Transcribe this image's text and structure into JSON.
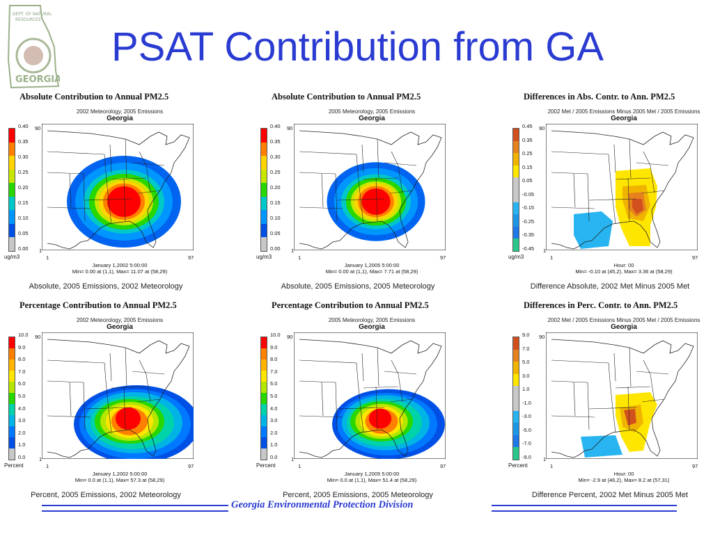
{
  "slide": {
    "title": "PSAT Contribution from GA",
    "footer": "Georgia Environmental Protection Division"
  },
  "logo": {
    "name": "ga-dnr-seal",
    "lines": [
      "DEPT. OF NATURAL",
      "RESOURCES",
      "GEORGIA"
    ]
  },
  "panels": [
    {
      "title": "Absolute Contribution to Annual PM2.5",
      "subtitle": "2002 Meteorology, 2005 Emissions",
      "state": "Georgia",
      "scale_labels": [
        "0.40",
        "0.35",
        "0.30",
        "0.25",
        "0.20",
        "0.15",
        "0.10",
        "0.05",
        "0.00"
      ],
      "unit": "ug/m3",
      "axis": {
        "top": "90",
        "bottom": "1",
        "left": "1",
        "right": "97"
      },
      "meta_line1": "January 1,2002 5:00:00",
      "meta_line2": "Min=   0.00 at (1,1), Max=   11.07 at (58,29)",
      "caption": "Absolute, 2005 Emissions, 2002 Meteorology",
      "kind": "abs",
      "plume": "large"
    },
    {
      "title": "Absolute Contribution to Annual PM2.5",
      "subtitle": "2005 Meteorology, 2005 Emissions",
      "state": "Georgia",
      "scale_labels": [
        "0.40",
        "0.35",
        "0.30",
        "0.25",
        "0.20",
        "0.15",
        "0.10",
        "0.05",
        "0.00"
      ],
      "unit": "ug/m3",
      "axis": {
        "top": "90",
        "bottom": "1",
        "left": "1",
        "right": "97"
      },
      "meta_line1": "January 1,2005 5:00:00",
      "meta_line2": "Min=   0.00 at (1,1), Max=   7.71 at (58,29)",
      "caption": "Absolute, 2005 Emissions, 2005 Meteorology",
      "kind": "abs",
      "plume": "medium"
    },
    {
      "title": "Differences in Abs. Contr. to Ann. PM2.5",
      "subtitle": "2002 Met / 2005 Emissions Minus 2005 Met / 2005 Emissions",
      "state": "Georgia",
      "scale_labels": [
        "0.45",
        "0.35",
        "0.25",
        "0.15",
        "0.05",
        "-0.05",
        "-0.15",
        "-0.25",
        "-0.35",
        "-0.45"
      ],
      "unit": "ug/m3",
      "axis": {
        "top": "90",
        "bottom": "1",
        "left": "1",
        "right": "97"
      },
      "meta_line1": "Hour: 00",
      "meta_line2": "Min=   -0.10 at (45,2), Max=    3.36 at (58,29)",
      "caption": "Difference Absolute, 2002 Met Minus 2005 Met",
      "kind": "diff",
      "plume": "diffabs"
    },
    {
      "title": "Percentage Contribution to Annual PM2.5",
      "subtitle": "2002 Meteorology, 2005 Emissions",
      "state": "Georgia",
      "scale_labels": [
        "10.0",
        "9.0",
        "8.0",
        "7.0",
        "6.0",
        "5.0",
        "4.0",
        "3.0",
        "2.0",
        "1.0",
        "0.0"
      ],
      "unit": "Percent",
      "axis": {
        "top": "90",
        "bottom": "1",
        "left": "1",
        "right": "97"
      },
      "meta_line1": "January 1,2002 5:00:00",
      "meta_line2": "Min=   0.0 at (1,1), Max=   57.3 at (58,29)",
      "caption": "Percent, 2005 Emissions, 2002 Meteorology",
      "kind": "pct",
      "plume": "pct1"
    },
    {
      "title": "Percentage Contribution to Annual PM2.5",
      "subtitle": "2005 Meteorology, 2005 Emissions",
      "state": "Georgia",
      "scale_labels": [
        "10.0",
        "9.0",
        "8.0",
        "7.0",
        "6.0",
        "5.0",
        "4.0",
        "3.0",
        "2.0",
        "1.0",
        "0.0"
      ],
      "unit": "Percent",
      "axis": {
        "top": "90",
        "bottom": "1",
        "left": "1",
        "right": "97"
      },
      "meta_line1": "January 1,2005 5:00:00",
      "meta_line2": "Min=   0.0 at (1,1), Max=   51.4 at (58,29)",
      "caption": "Percent, 2005 Emissions, 2005 Meteorology",
      "kind": "pct",
      "plume": "pct2"
    },
    {
      "title": "Differences in Perc. Contr. to Ann. PM2.5",
      "subtitle": "2002 Met / 2005 Emissions Minus 2005 Met / 2005 Emissions",
      "state": "Georgia",
      "scale_labels": [
        "9.0",
        "7.0",
        "5.0",
        "3.0",
        "1.0",
        "-1.0",
        "-3.0",
        "-5.0",
        "-7.0",
        "-9.0"
      ],
      "unit": "Percent",
      "axis": {
        "top": "90",
        "bottom": "1",
        "left": "1",
        "right": "97"
      },
      "meta_line1": "Hour: 00",
      "meta_line2": "Min=   -2.9 at (46,2), Max=    8.2 at (57,31)",
      "caption": "Difference Percent, 2002 Met Minus 2005 Met",
      "kind": "diff",
      "plume": "diffpct"
    }
  ],
  "colors": {
    "title_blue": "#2a3bd1",
    "abs_scale": [
      "#ff0000",
      "#ff7f00",
      "#ffd400",
      "#c8e600",
      "#28d700",
      "#00c8c8",
      "#0096ff",
      "#0050e6",
      "#c8c8c8"
    ],
    "pct_scale": [
      "#ff0000",
      "#ff7f00",
      "#ffb400",
      "#ffe600",
      "#b4e600",
      "#28d700",
      "#00d2aa",
      "#00b4e6",
      "#0078ff",
      "#0050e6",
      "#c8c8c8"
    ],
    "diff_scale": [
      "#d2501e",
      "#e6821e",
      "#f0b400",
      "#ffe600",
      "#c8c8c8",
      "#c8c8c8",
      "#28b4f0",
      "#1e96e6",
      "#1e78e6",
      "#28c88c"
    ]
  }
}
